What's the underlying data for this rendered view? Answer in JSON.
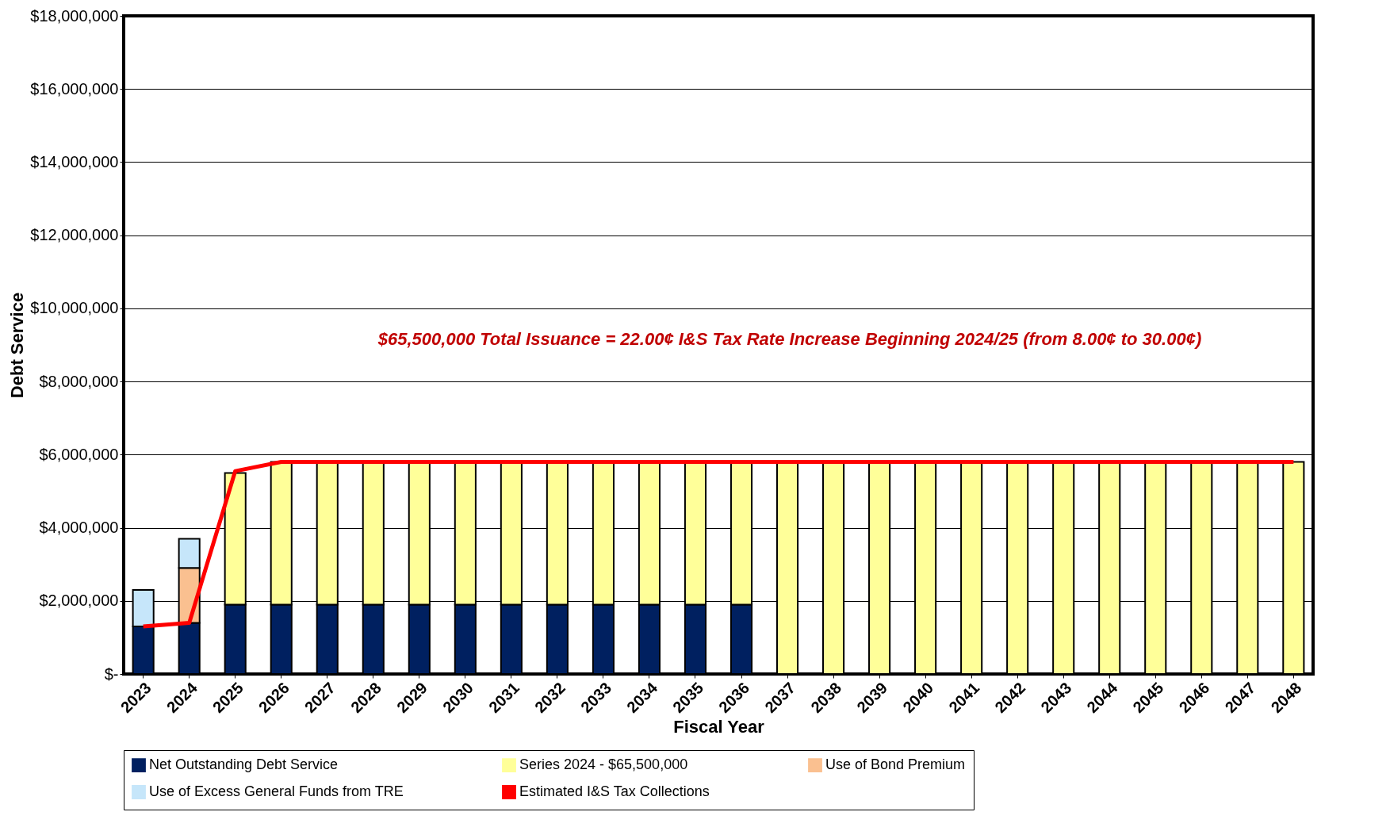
{
  "chart_data": {
    "type": "bar",
    "stacked": true,
    "xlabel": "Fiscal Year",
    "ylabel": "Debt Service",
    "categories": [
      "2023",
      "2024",
      "2025",
      "2026",
      "2027",
      "2028",
      "2029",
      "2030",
      "2031",
      "2032",
      "2033",
      "2034",
      "2035",
      "2036",
      "2037",
      "2038",
      "2039",
      "2040",
      "2041",
      "2042",
      "2043",
      "2044",
      "2045",
      "2046",
      "2047",
      "2048"
    ],
    "series": [
      {
        "name": "Net Outstanding Debt Service",
        "color": "#002060",
        "values": [
          1300000,
          1400000,
          1900000,
          1900000,
          1900000,
          1900000,
          1900000,
          1900000,
          1900000,
          1900000,
          1900000,
          1900000,
          1900000,
          1900000,
          0,
          0,
          0,
          0,
          0,
          0,
          0,
          0,
          0,
          0,
          0,
          0
        ]
      },
      {
        "name": "Series 2024 -  $65,500,000",
        "color": "#ffff99",
        "values": [
          0,
          0,
          3600000,
          3900000,
          3900000,
          3900000,
          3900000,
          3900000,
          3900000,
          3900000,
          3900000,
          3900000,
          3900000,
          3900000,
          5800000,
          5800000,
          5800000,
          5800000,
          5800000,
          5800000,
          5800000,
          5800000,
          5800000,
          5800000,
          5800000,
          5800000
        ]
      },
      {
        "name": "Use of Bond Premium",
        "color": "#fac090",
        "values": [
          0,
          1500000,
          0,
          0,
          0,
          0,
          0,
          0,
          0,
          0,
          0,
          0,
          0,
          0,
          0,
          0,
          0,
          0,
          0,
          0,
          0,
          0,
          0,
          0,
          0,
          0
        ]
      },
      {
        "name": "Use of Excess General Funds from TRE",
        "color": "#c6e6fa",
        "values": [
          1000000,
          800000,
          0,
          0,
          0,
          0,
          0,
          0,
          0,
          0,
          0,
          0,
          0,
          0,
          0,
          0,
          0,
          0,
          0,
          0,
          0,
          0,
          0,
          0,
          0,
          0
        ]
      },
      {
        "name": "Estimated I&S Tax Collections",
        "type": "line",
        "color": "#ff0000",
        "values": [
          1300000,
          1400000,
          5550000,
          5800000,
          5800000,
          5800000,
          5800000,
          5800000,
          5800000,
          5800000,
          5800000,
          5800000,
          5800000,
          5800000,
          5800000,
          5800000,
          5800000,
          5800000,
          5800000,
          5800000,
          5800000,
          5800000,
          5800000,
          5800000,
          5800000,
          5800000
        ]
      }
    ],
    "ylim": [
      0,
      18000000
    ],
    "yticks": [
      {
        "value": 0,
        "label": "$-"
      },
      {
        "value": 2000000,
        "label": "$2,000,000"
      },
      {
        "value": 4000000,
        "label": "$4,000,000"
      },
      {
        "value": 6000000,
        "label": "$6,000,000"
      },
      {
        "value": 8000000,
        "label": "$8,000,000"
      },
      {
        "value": 10000000,
        "label": "$10,000,000"
      },
      {
        "value": 12000000,
        "label": "$12,000,000"
      },
      {
        "value": 14000000,
        "label": "$14,000,000"
      },
      {
        "value": 16000000,
        "label": "$16,000,000"
      },
      {
        "value": 18000000,
        "label": "$18,000,000"
      }
    ],
    "grid": "y",
    "legend": "bottom",
    "marker": "none",
    "line_style": "solid",
    "annotations": [
      "$65,500,000 Total Issuance = 22.00¢ I&S Tax Rate Increase Beginning 2024/25 (from 8.00¢ to 30.00¢)"
    ]
  }
}
